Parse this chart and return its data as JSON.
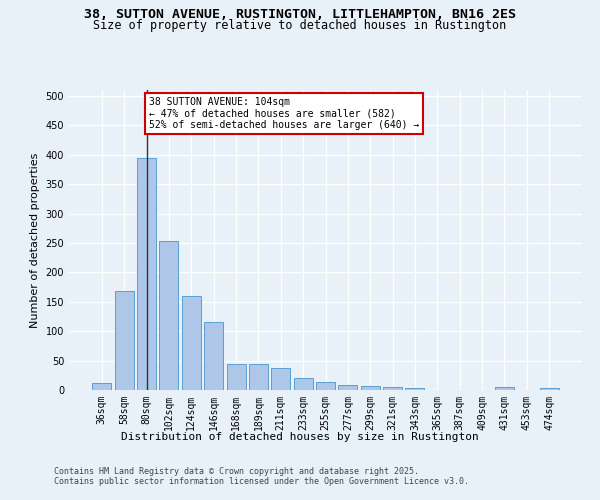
{
  "title1": "38, SUTTON AVENUE, RUSTINGTON, LITTLEHAMPTON, BN16 2ES",
  "title2": "Size of property relative to detached houses in Rustington",
  "xlabel": "Distribution of detached houses by size in Rustington",
  "ylabel": "Number of detached properties",
  "categories": [
    "36sqm",
    "58sqm",
    "80sqm",
    "102sqm",
    "124sqm",
    "146sqm",
    "168sqm",
    "189sqm",
    "211sqm",
    "233sqm",
    "255sqm",
    "277sqm",
    "299sqm",
    "321sqm",
    "343sqm",
    "365sqm",
    "387sqm",
    "409sqm",
    "431sqm",
    "453sqm",
    "474sqm"
  ],
  "values": [
    12,
    168,
    395,
    253,
    160,
    115,
    45,
    45,
    38,
    20,
    14,
    9,
    6,
    5,
    4,
    0,
    0,
    0,
    5,
    0,
    3
  ],
  "bar_color": "#aec6e8",
  "bar_edge_color": "#5a9fd4",
  "background_color": "#e8f0f8",
  "grid_color": "#ffffff",
  "annotation_text": "38 SUTTON AVENUE: 104sqm\n← 47% of detached houses are smaller (582)\n52% of semi-detached houses are larger (640) →",
  "annotation_box_color": "#cc0000",
  "vline_x_index": 2,
  "vline_color": "#333333",
  "ylim": [
    0,
    510
  ],
  "yticks": [
    0,
    50,
    100,
    150,
    200,
    250,
    300,
    350,
    400,
    450,
    500
  ],
  "footnote1": "Contains HM Land Registry data © Crown copyright and database right 2025.",
  "footnote2": "Contains public sector information licensed under the Open Government Licence v3.0.",
  "title1_fontsize": 9.5,
  "title2_fontsize": 8.5,
  "xlabel_fontsize": 8,
  "ylabel_fontsize": 8,
  "tick_fontsize": 7,
  "footnote_fontsize": 6,
  "ann_fontsize": 7
}
